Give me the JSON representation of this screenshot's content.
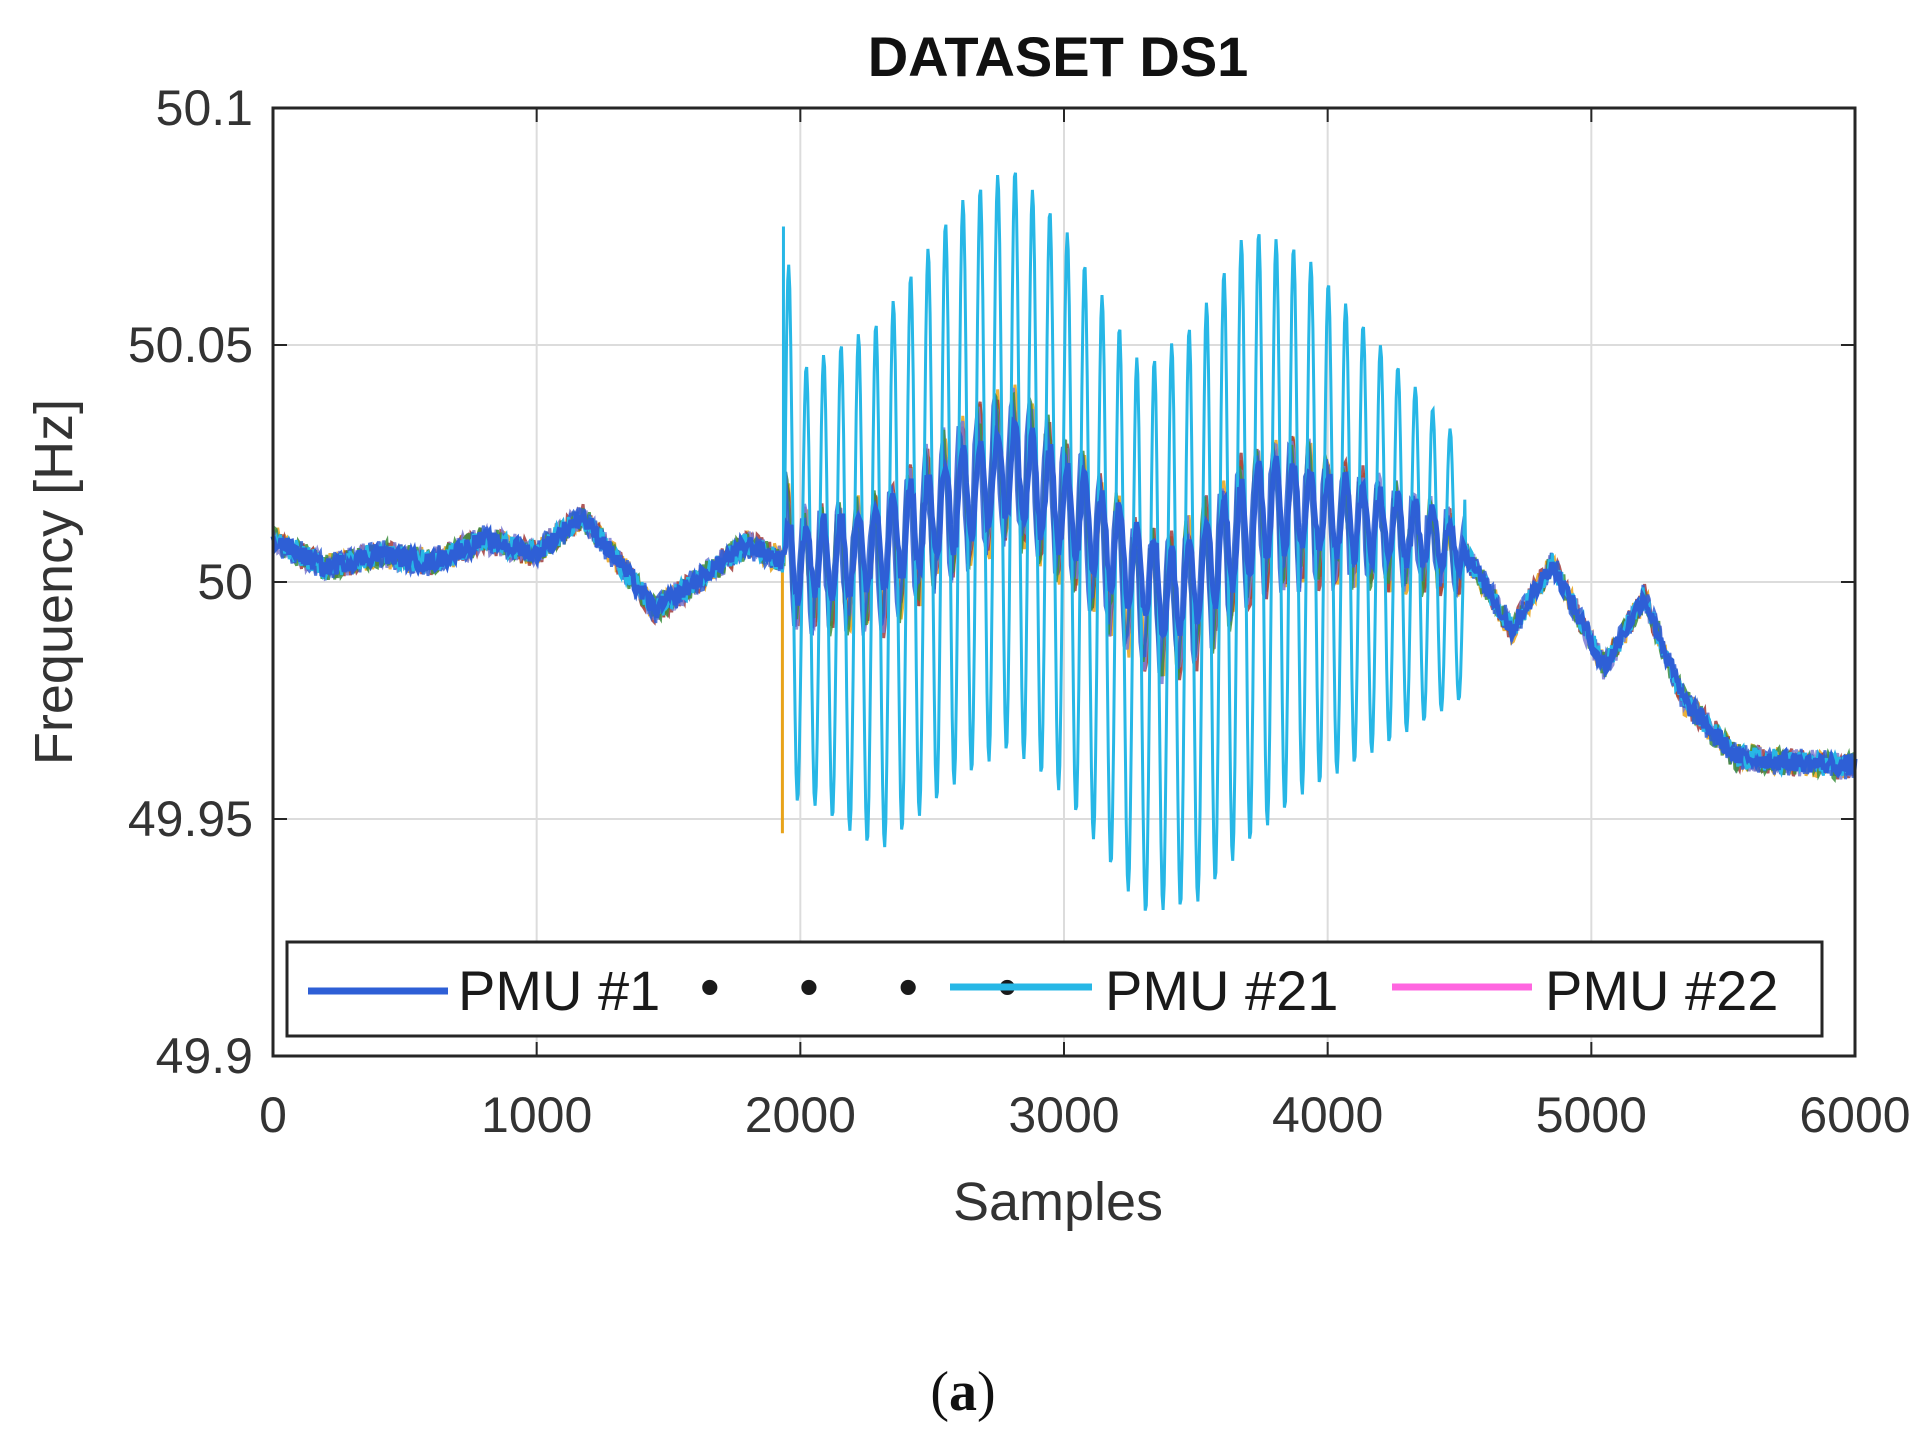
{
  "chart_data": {
    "type": "line",
    "title": "DATASET DS1",
    "xlabel": "Samples",
    "ylabel": "Frequency [Hz]",
    "xlim": [
      0,
      6000
    ],
    "ylim": [
      49.9,
      50.1
    ],
    "xticks": [
      0,
      1000,
      2000,
      3000,
      4000,
      5000,
      6000
    ],
    "xtick_labels": [
      "0",
      "1000",
      "2000",
      "3000",
      "4000",
      "5000",
      "6000"
    ],
    "yticks": [
      49.9,
      49.95,
      50,
      50.05,
      50.1
    ],
    "ytick_labels": [
      "49.9",
      "49.95",
      "50",
      "50.05",
      "50.1"
    ],
    "grid": true,
    "legend_position": "bottom",
    "legend": [
      {
        "label": "PMU #1",
        "color": "#2e5fd6"
      },
      {
        "label": "PMU #21",
        "color": "#27b7e6"
      },
      {
        "label": "PMU #22",
        "color": "#ff66e0"
      }
    ],
    "legend_ellipsis": "• • • •",
    "series_colors": [
      "#e8a31a",
      "#a23b3b",
      "#7b7bd1",
      "#3d8f3d",
      "#2e5fd6"
    ],
    "trend": {
      "x": [
        0,
        200,
        400,
        600,
        800,
        1000,
        1170,
        1300,
        1450,
        1650,
        1800,
        1950,
        2300,
        2800,
        3100,
        3400,
        3800,
        4200,
        4500,
        4700,
        4850,
        5050,
        5200,
        5350,
        5550,
        6000
      ],
      "y": [
        50.009,
        50.003,
        50.006,
        50.004,
        50.009,
        50.006,
        50.014,
        50.005,
        49.994,
        50.002,
        50.008,
        50.004,
        50.007,
        50.024,
        50.012,
        49.997,
        50.017,
        50.012,
        50.008,
        49.99,
        50.004,
        49.982,
        49.997,
        49.975,
        49.963,
        49.961
      ]
    },
    "pmu21_oscillation": {
      "start_sample": 1940,
      "end_sample": 4520,
      "envelope_x": [
        1940,
        2000,
        2300,
        2600,
        2800,
        3000,
        3300,
        3500,
        3700,
        3900,
        4200,
        4500
      ],
      "envelope_upper": [
        50.075,
        50.045,
        50.055,
        50.08,
        50.088,
        50.075,
        50.045,
        50.055,
        50.075,
        50.07,
        50.05,
        50.03
      ],
      "envelope_lower": [
        49.947,
        49.955,
        49.943,
        49.958,
        49.965,
        49.955,
        49.93,
        49.932,
        49.945,
        49.955,
        49.965,
        49.975
      ]
    }
  },
  "caption": {
    "open": "(",
    "letter": "a",
    "close": ")"
  }
}
